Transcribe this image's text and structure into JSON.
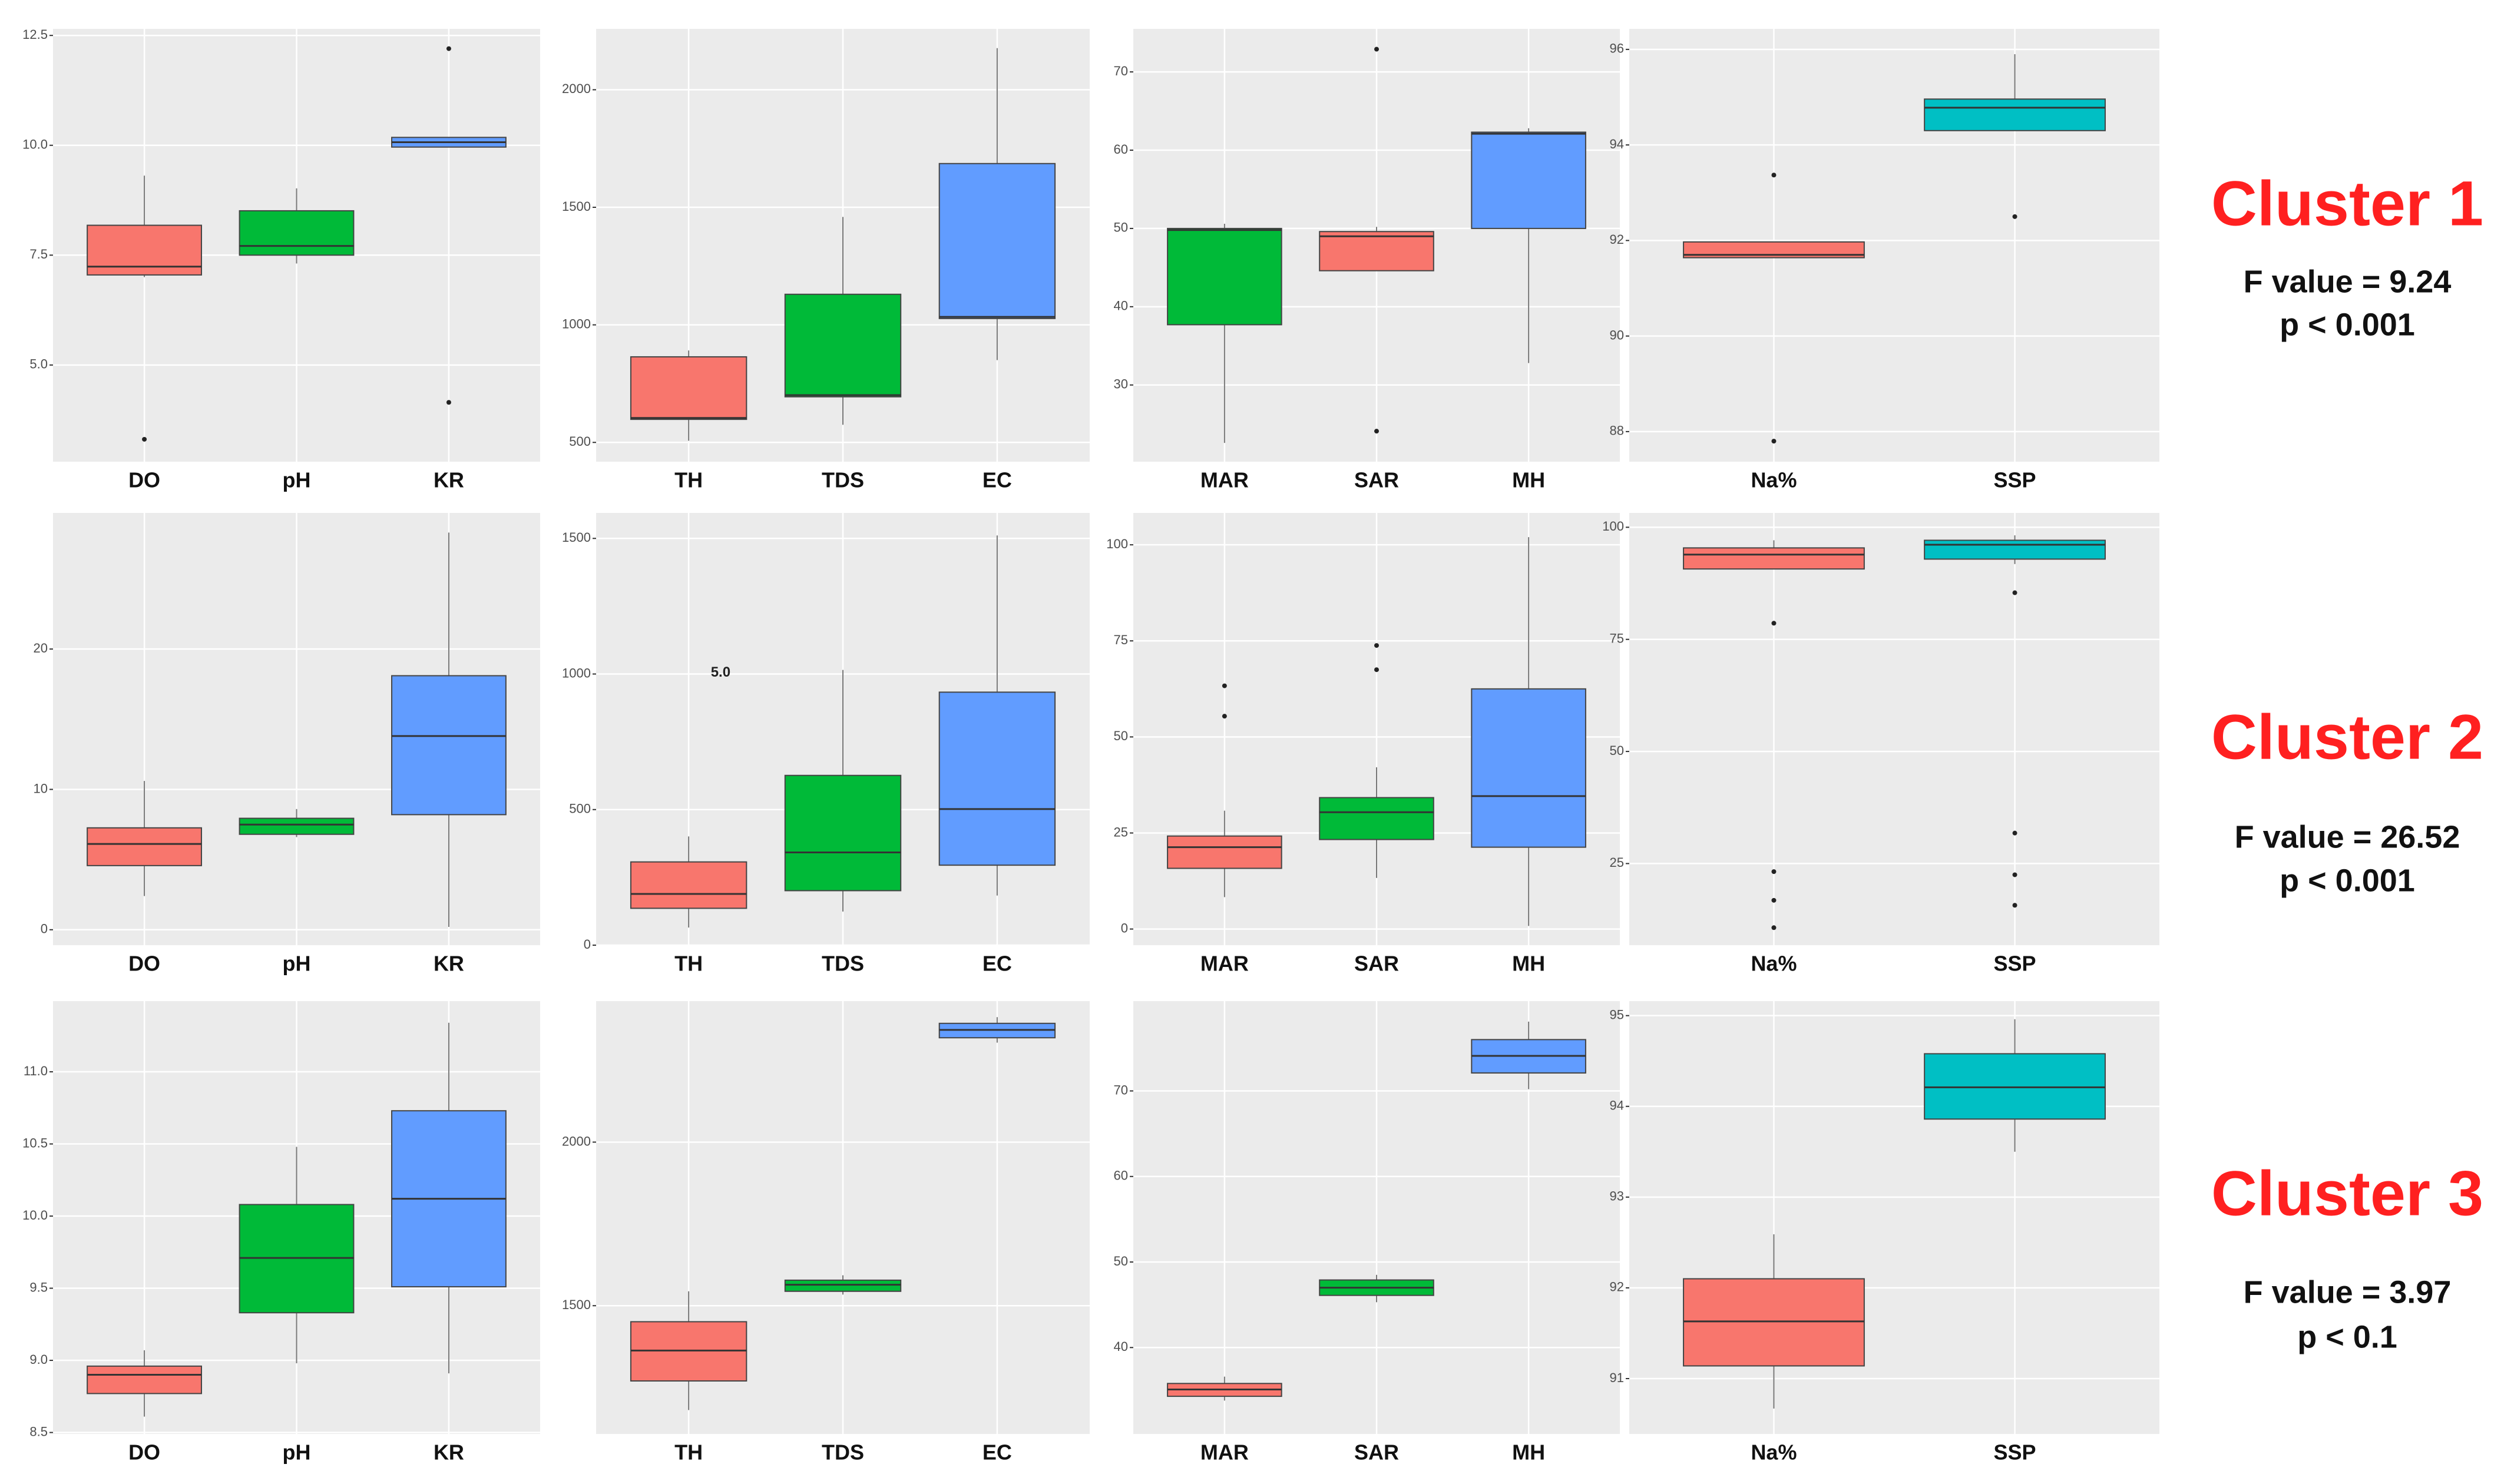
{
  "chart_data": [
    {
      "type": "box",
      "categories": [
        "DO",
        "pH",
        "KR"
      ],
      "ylim": [
        2.8,
        12.65
      ],
      "yticks": [
        {
          "value": 5,
          "label": "5.0"
        },
        7.5,
        {
          "value": 10,
          "label": "10.0"
        },
        12.5
      ],
      "grid": true,
      "boxes": [
        {
          "color": "#F8766D",
          "whisker_low": 7.0,
          "q1": 7.05,
          "median": 7.24,
          "q3": 8.18,
          "whisker_high": 9.31,
          "outliers": [
            3.31
          ]
        },
        {
          "color": "#00BA38",
          "whisker_low": 7.31,
          "q1": 7.5,
          "median": 7.71,
          "q3": 8.51,
          "whisker_high": 9.02,
          "outliers": []
        },
        {
          "color": "#619CFF",
          "whisker_low": 9.96,
          "q1": 9.96,
          "median": 10.07,
          "q3": 10.18,
          "whisker_high": 10.18,
          "outliers": [
            12.2,
            4.15
          ]
        }
      ]
    },
    {
      "type": "box",
      "categories": [
        "TH",
        "TDS",
        "EC"
      ],
      "ylim": [
        418,
        2259
      ],
      "yticks": [
        500,
        1000,
        1500,
        2000
      ],
      "grid": true,
      "boxes": [
        {
          "color": "#F8766D",
          "whisker_low": 507,
          "q1": 598,
          "median": 604,
          "q3": 864,
          "whisker_high": 891,
          "outliers": []
        },
        {
          "color": "#00BA38",
          "whisker_low": 575,
          "q1": 694,
          "median": 701,
          "q3": 1130,
          "whisker_high": 1459,
          "outliers": []
        },
        {
          "color": "#619CFF",
          "whisker_low": 850,
          "q1": 1027,
          "median": 1034,
          "q3": 1686,
          "whisker_high": 2177,
          "outliers": []
        }
      ]
    },
    {
      "type": "box",
      "categories": [
        "MAR",
        "SAR",
        "MH"
      ],
      "ylim": [
        20.2,
        75.5
      ],
      "yticks": [
        30,
        40,
        50,
        60,
        70
      ],
      "grid": true,
      "boxes": [
        {
          "color": "#00BA38",
          "whisker_low": 22.6,
          "q1": 37.7,
          "median": 49.8,
          "q3": 50,
          "whisker_high": 50.6,
          "outliers": []
        },
        {
          "color": "#F8766D",
          "whisker_low": 44.6,
          "q1": 44.6,
          "median": 49,
          "q3": 49.6,
          "whisker_high": 50.2,
          "outliers": [
            72.9,
            24.1
          ]
        },
        {
          "color": "#619CFF",
          "whisker_low": 32.8,
          "q1": 50,
          "median": 62.1,
          "q3": 62.3,
          "whisker_high": 62.8,
          "outliers": []
        }
      ]
    },
    {
      "type": "box",
      "categories": [
        "Na%",
        "SSP"
      ],
      "ylim": [
        87.37,
        96.43
      ],
      "yticks": [
        88,
        90,
        92,
        94,
        96
      ],
      "grid": true,
      "boxes": [
        {
          "color": "#F8766D",
          "whisker_low": 91.64,
          "q1": 91.64,
          "median": 91.7,
          "q3": 91.97,
          "whisker_high": 91.97,
          "outliers": [
            93.37,
            87.8
          ]
        },
        {
          "color": "#00BFC4",
          "whisker_low": 94.3,
          "q1": 94.3,
          "median": 94.78,
          "q3": 94.96,
          "whisker_high": 95.9,
          "outliers": [
            92.5
          ]
        }
      ]
    },
    {
      "type": "box",
      "categories": [
        "DO",
        "pH",
        "KR"
      ],
      "ylim": [
        -1.1,
        29.7
      ],
      "yticks": [
        0,
        10,
        20
      ],
      "grid": true,
      "boxes": [
        {
          "color": "#F8766D",
          "whisker_low": 2.4,
          "q1": 4.57,
          "median": 6.11,
          "q3": 7.26,
          "whisker_high": 10.6,
          "outliers": []
        },
        {
          "color": "#00BA38",
          "whisker_low": 6.6,
          "q1": 6.8,
          "median": 7.49,
          "q3": 7.94,
          "whisker_high": 8.6,
          "outliers": []
        },
        {
          "color": "#619CFF",
          "whisker_low": 0.2,
          "q1": 8.2,
          "median": 13.8,
          "q3": 18.1,
          "whisker_high": 28.3,
          "outliers": []
        }
      ]
    },
    {
      "type": "box",
      "categories": [
        "TH",
        "TDS",
        "EC"
      ],
      "ylim": [
        0,
        1594
      ],
      "yticks": [
        0,
        500,
        1000,
        1500
      ],
      "grid": true,
      "annotation": "5.0",
      "boxes": [
        {
          "color": "#F8766D",
          "whisker_low": 65,
          "q1": 136,
          "median": 189,
          "q3": 307,
          "whisker_high": 401,
          "outliers": []
        },
        {
          "color": "#00BA38",
          "whisker_low": 124,
          "q1": 201,
          "median": 342,
          "q3": 626,
          "whisker_high": 1015,
          "outliers": []
        },
        {
          "color": "#619CFF",
          "whisker_low": 183,
          "q1": 295,
          "median": 502,
          "q3": 933,
          "whisker_high": 1511,
          "outliers": []
        }
      ]
    },
    {
      "type": "box",
      "categories": [
        "MAR",
        "SAR",
        "MH"
      ],
      "ylim": [
        -4.2,
        108.3
      ],
      "yticks": [
        0,
        25,
        50,
        75,
        100
      ],
      "grid": true,
      "boxes": [
        {
          "color": "#F8766D",
          "whisker_low": 8.3,
          "q1": 15.8,
          "median": 21.3,
          "q3": 24.2,
          "whisker_high": 30.8,
          "outliers": [
            63.3,
            55.4
          ]
        },
        {
          "color": "#00BA38",
          "whisker_low": 13.3,
          "q1": 23.3,
          "median": 30.4,
          "q3": 34.2,
          "whisker_high": 42.1,
          "outliers": [
            73.8,
            67.5
          ]
        },
        {
          "color": "#619CFF",
          "whisker_low": 0.8,
          "q1": 21.3,
          "median": 34.6,
          "q3": 62.5,
          "whisker_high": 102,
          "outliers": []
        }
      ]
    },
    {
      "type": "box",
      "categories": [
        "Na%",
        "SSP"
      ],
      "ylim": [
        6.8,
        103.2
      ],
      "yticks": [
        25,
        50,
        75,
        100
      ],
      "grid": true,
      "boxes": [
        {
          "color": "#F8766D",
          "whisker_low": 90.7,
          "q1": 90.7,
          "median": 93.9,
          "q3": 95.4,
          "whisker_high": 97.1,
          "outliers": [
            78.6,
            23.2,
            16.8,
            10.7
          ]
        },
        {
          "color": "#00BFC4",
          "whisker_low": 91.8,
          "q1": 92.9,
          "median": 96.1,
          "q3": 97.1,
          "whisker_high": 98.2,
          "outliers": [
            85.4,
            31.8,
            22.5,
            15.7
          ]
        }
      ]
    },
    {
      "type": "box",
      "categories": [
        "DO",
        "pH",
        "KR"
      ],
      "ylim": [
        8.49,
        11.49
      ],
      "yticks": [
        8.5,
        {
          "value": 9,
          "label": "9.0"
        },
        9.5,
        {
          "value": 10,
          "label": "10.0"
        },
        10.5,
        {
          "value": 11,
          "label": "11.0"
        }
      ],
      "grid": true,
      "boxes": [
        {
          "color": "#F8766D",
          "whisker_low": 8.61,
          "q1": 8.77,
          "median": 8.9,
          "q3": 8.96,
          "whisker_high": 9.07,
          "outliers": []
        },
        {
          "color": "#00BA38",
          "whisker_low": 8.98,
          "q1": 9.33,
          "median": 9.71,
          "q3": 10.08,
          "whisker_high": 10.48,
          "outliers": []
        },
        {
          "color": "#619CFF",
          "whisker_low": 8.91,
          "q1": 9.51,
          "median": 10.12,
          "q3": 10.73,
          "whisker_high": 11.34,
          "outliers": []
        }
      ]
    },
    {
      "type": "box",
      "categories": [
        "TH",
        "TDS",
        "EC"
      ],
      "ylim": [
        1108,
        2431
      ],
      "yticks": [
        1500,
        2000
      ],
      "grid": true,
      "boxes": [
        {
          "color": "#F8766D",
          "whisker_low": 1181,
          "q1": 1270,
          "median": 1363,
          "q3": 1451,
          "whisker_high": 1544,
          "outliers": []
        },
        {
          "color": "#00BA38",
          "whisker_low": 1534,
          "q1": 1544,
          "median": 1564,
          "q3": 1578,
          "whisker_high": 1593,
          "outliers": []
        },
        {
          "color": "#619CFF",
          "whisker_low": 2304,
          "q1": 2319,
          "median": 2343,
          "q3": 2363,
          "whisker_high": 2382,
          "outliers": []
        }
      ]
    },
    {
      "type": "box",
      "categories": [
        "MAR",
        "SAR",
        "MH"
      ],
      "ylim": [
        29.9,
        80.5
      ],
      "yticks": [
        40,
        50,
        60,
        70
      ],
      "grid": true,
      "boxes": [
        {
          "color": "#F8766D",
          "whisker_low": 33.8,
          "q1": 34.3,
          "median": 35.1,
          "q3": 35.8,
          "whisker_high": 36.6,
          "outliers": []
        },
        {
          "color": "#00BA38",
          "whisker_low": 45.3,
          "q1": 46.1,
          "median": 47,
          "q3": 47.9,
          "whisker_high": 48.5,
          "outliers": []
        },
        {
          "color": "#619CFF",
          "whisker_low": 70.2,
          "q1": 72.1,
          "median": 74.1,
          "q3": 76,
          "whisker_high": 78.1,
          "outliers": []
        }
      ]
    },
    {
      "type": "box",
      "categories": [
        "Na%",
        "SSP"
      ],
      "ylim": [
        90.39,
        95.16
      ],
      "yticks": [
        91,
        92,
        93,
        94,
        95
      ],
      "grid": true,
      "boxes": [
        {
          "color": "#F8766D",
          "whisker_low": 90.67,
          "q1": 91.14,
          "median": 91.63,
          "q3": 92.1,
          "whisker_high": 92.59,
          "outliers": []
        },
        {
          "color": "#00BFC4",
          "whisker_low": 93.5,
          "q1": 93.86,
          "median": 94.21,
          "q3": 94.58,
          "whisker_high": 94.96,
          "outliers": []
        }
      ]
    }
  ],
  "clusters": [
    {
      "title": "Cluster 1",
      "f_value": "F value = 9.24",
      "p_value": "p < 0.001"
    },
    {
      "title": "Cluster 2",
      "f_value": "F value = 26.52",
      "p_value": "p < 0.001"
    },
    {
      "title": "Cluster 3",
      "f_value": "F value = 3.97",
      "p_value": "p < 0.1"
    }
  ]
}
